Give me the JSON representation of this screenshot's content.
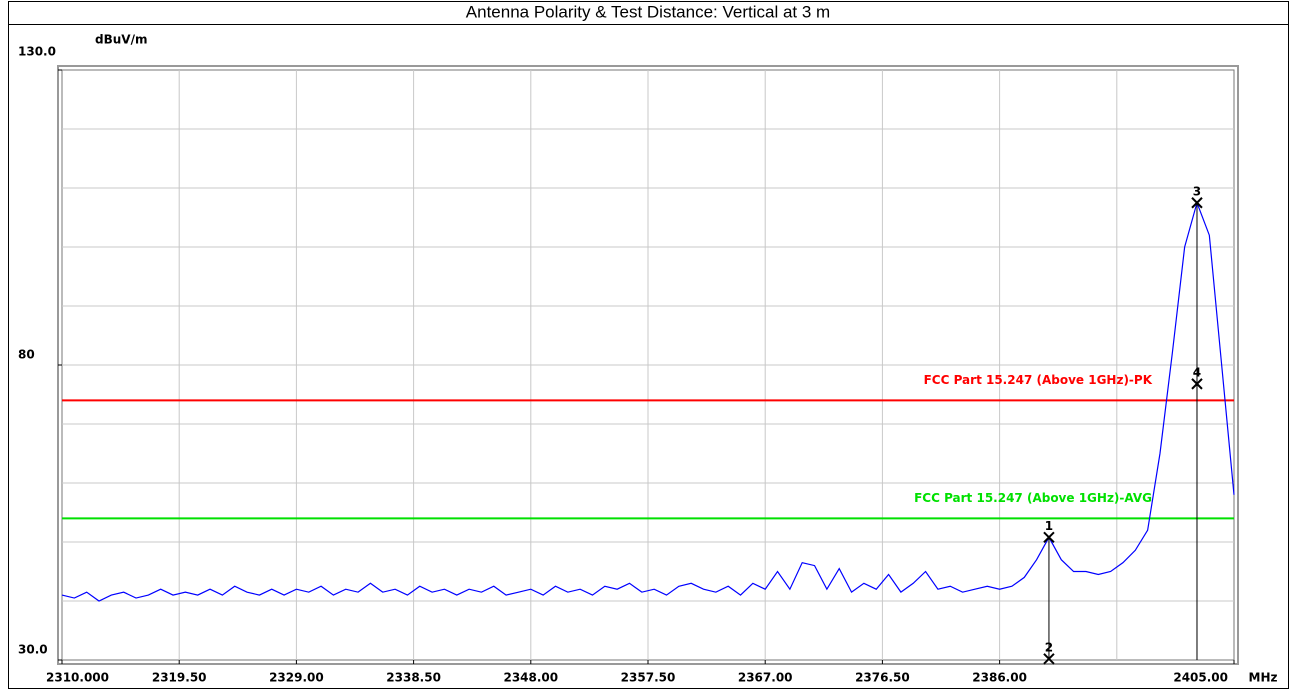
{
  "chart_data": {
    "type": "line",
    "title": "Antenna Polarity & Test Distance: Vertical at 3 m",
    "y_unit": "dBuV/m",
    "x_unit": "MHz",
    "xlim": [
      2310,
      2405
    ],
    "ylim": [
      30,
      130
    ],
    "xticks": [
      {
        "value": 2310,
        "label": "2310.000"
      },
      {
        "value": 2319.5,
        "label": "2319.50"
      },
      {
        "value": 2329,
        "label": "2329.00"
      },
      {
        "value": 2338.5,
        "label": "2338.50"
      },
      {
        "value": 2348,
        "label": "2348.00"
      },
      {
        "value": 2357.5,
        "label": "2357.50"
      },
      {
        "value": 2367,
        "label": "2367.00"
      },
      {
        "value": 2376.5,
        "label": "2376.50"
      },
      {
        "value": 2386,
        "label": "2386.00"
      },
      {
        "value": 2405,
        "label": "2405.00"
      }
    ],
    "xgrid": [
      2319.5,
      2329,
      2338.5,
      2348,
      2357.5,
      2367,
      2376.5,
      2386,
      2395.5
    ],
    "yticks": [
      {
        "value": 130,
        "label": "130.0"
      },
      80,
      {
        "value": 30,
        "label": "30.0"
      }
    ],
    "ygrid": [
      40,
      50,
      60,
      70,
      80,
      90,
      100,
      110,
      120
    ],
    "grid": true,
    "x": [
      2310,
      2311,
      2312,
      2313,
      2314,
      2315,
      2316,
      2317,
      2318,
      2319,
      2320,
      2321,
      2322,
      2323,
      2324,
      2325,
      2326,
      2327,
      2328,
      2329,
      2330,
      2331,
      2332,
      2333,
      2334,
      2335,
      2336,
      2337,
      2338,
      2339,
      2340,
      2341,
      2342,
      2343,
      2344,
      2345,
      2346,
      2347,
      2348,
      2349,
      2350,
      2351,
      2352,
      2353,
      2354,
      2355,
      2356,
      2357,
      2358,
      2359,
      2360,
      2361,
      2362,
      2363,
      2364,
      2365,
      2366,
      2367,
      2368,
      2369,
      2370,
      2371,
      2372,
      2373,
      2374,
      2375,
      2376,
      2377,
      2378,
      2379,
      2380,
      2381,
      2382,
      2383,
      2384,
      2385,
      2386,
      2387,
      2388,
      2389,
      2390,
      2391,
      2392,
      2393,
      2394,
      2395,
      2396,
      2397,
      2398,
      2399,
      2400,
      2401,
      2402,
      2403,
      2404,
      2405
    ],
    "series": [
      {
        "color": "#0000ff",
        "values": [
          41,
          40.5,
          41.5,
          40,
          41,
          41.5,
          40.5,
          41,
          42,
          41,
          41.5,
          41,
          42,
          41,
          42.5,
          41.5,
          41,
          42,
          41,
          42,
          41.5,
          42.5,
          41,
          42,
          41.5,
          43,
          41.5,
          42,
          41,
          42.5,
          41.5,
          42,
          41,
          42,
          41.5,
          42.5,
          41,
          41.5,
          42,
          41,
          42.5,
          41.5,
          42,
          41,
          42.5,
          42,
          43,
          41.5,
          42,
          41,
          42.5,
          43,
          42,
          41.5,
          42.5,
          41,
          43,
          42,
          45,
          42,
          46.5,
          46,
          42,
          45.5,
          41.5,
          43,
          42,
          44.5,
          41.5,
          43,
          45,
          42,
          42.5,
          41.5,
          42,
          42.5,
          42,
          42.5,
          44,
          47,
          50.8,
          47,
          45,
          45,
          44.5,
          45,
          46.5,
          48.6,
          52,
          65,
          82,
          100,
          107.5,
          102,
          80,
          58
        ]
      }
    ],
    "limits": [
      {
        "name": "FCC Part 15.247 (Above 1GHz)-PK",
        "color": "#ff0000",
        "value": 74
      },
      {
        "name": "FCC Part 15.247 (Above 1GHz)-AVG",
        "color": "#00e000",
        "value": 54
      }
    ],
    "markers": {
      "labels": [
        "1",
        "2",
        "3",
        "4"
      ],
      "x": [
        2390,
        2390,
        2402,
        2402
      ],
      "values": [
        50.8,
        30.2,
        107.5,
        76.8
      ]
    }
  }
}
